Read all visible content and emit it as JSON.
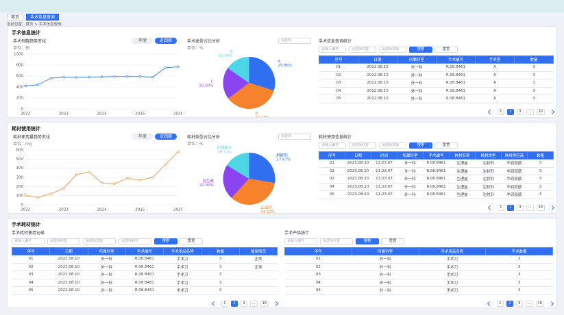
{
  "tabs": [
    "首页",
    "手术信息查询"
  ],
  "active_tab": 1,
  "breadcrumb": "当前位置：首页 > 手术信息查询",
  "panels": [
    {
      "title": "手术信息统计",
      "line": {
        "type": "line",
        "title": "手术例数趋势变化",
        "unit": "单位：例",
        "toggles": [
          "年度",
          "近四周"
        ],
        "active_toggle": 1,
        "color": "#3a86e0",
        "categories": [
          "2022",
          null,
          null,
          "2023",
          null,
          null,
          "2024",
          null,
          null,
          "2025",
          null,
          null,
          "2026"
        ],
        "values": [
          420,
          440,
          560,
          580,
          575,
          580,
          585,
          590,
          590,
          590,
          580,
          750,
          770
        ],
        "ylim": [
          0,
          1000
        ],
        "yticks": [
          0,
          200,
          400,
          600,
          800,
          1000
        ]
      },
      "pie": {
        "type": "pie",
        "title": "手术类型占比分析",
        "unit": "单位：%",
        "dropdown": "请选择",
        "names": [
          "A",
          "B",
          "C",
          "D"
        ],
        "values": [
          29.86,
          34.78,
          20.0,
          15.36
        ],
        "value_labels": [
          "29.86%",
          "34.78%",
          "20.00%",
          "15.36%"
        ],
        "colors": [
          "#2f6ff0",
          "#f6832b",
          "#8a45f0",
          "#4fd6e6"
        ]
      },
      "table": {
        "title": "手术信息查询统计",
        "filters": [
          "请输入编号",
          "请选择科室",
          "请选择日期"
        ],
        "buttons": [
          "搜索",
          "重置"
        ],
        "columns": [
          "序号",
          "日期",
          "所属科室",
          "手术编号",
          "手术室",
          "数量"
        ],
        "rows": [
          [
            "01",
            "2022.08.10",
            "外一科",
            "R.08.8461",
            "A",
            "3"
          ],
          [
            "02",
            "2022.08.10",
            "外一科",
            "R.08.8461",
            "A",
            "3"
          ],
          [
            "03",
            "2022.08.10",
            "外一科",
            "R.08.8461",
            "A",
            "3"
          ],
          [
            "04",
            "2022.08.10",
            "外一科",
            "R.08.8461",
            "A",
            "3"
          ],
          [
            "05",
            "2022.08.10",
            "外一科",
            "R.08.8461",
            "A",
            "3"
          ]
        ],
        "pages": [
          "1",
          "2",
          "3",
          "...",
          "10"
        ],
        "active_page": 1
      }
    },
    {
      "title": "耗材使用统计",
      "line": {
        "type": "line",
        "title": "耗材使用量趋势变化",
        "unit": "单位：mg",
        "toggles": [
          "年度",
          "近四周"
        ],
        "active_toggle": 1,
        "color": "#f39a4a",
        "categories": [
          "2022",
          null,
          null,
          "2023",
          null,
          null,
          "2024",
          null,
          null,
          "2025",
          null,
          null,
          "2026"
        ],
        "values": [
          100,
          80,
          120,
          180,
          330,
          360,
          240,
          230,
          290,
          270,
          300,
          440,
          580
        ],
        "ylim": [
          0,
          600
        ],
        "yticks": [
          0,
          100,
          200,
          300,
          400,
          500,
          600
        ]
      },
      "pie": {
        "type": "pie",
        "title": "耗材类型占比分析",
        "unit": "单位：%",
        "dropdown": "请选择",
        "names": [
          "麻醉剂",
          "止血剂",
          "抗生素",
          "生理盐水"
        ],
        "values": [
          27.67,
          34.12,
          22.0,
          16.21
        ],
        "value_labels": [
          "27.67%",
          "34.12%",
          "22.00%",
          "16.21%"
        ],
        "colors": [
          "#2f6ff0",
          "#f6832b",
          "#8a45f0",
          "#4fd6e6"
        ]
      },
      "table": {
        "title": "耗材使用信息统计",
        "filters": [
          "请输入编号",
          "请选择科室",
          "请选择日期"
        ],
        "buttons": [
          "搜索",
          "重置"
        ],
        "columns": [
          "序号",
          "日期",
          "时间",
          "所属科室",
          "手术编号",
          "耗材名称",
          "耗材类型",
          "耗材供应商",
          "数量"
        ],
        "rows": [
          [
            "01",
            "2023.08.10",
            "11:23:07",
            "外一科",
            "R.08.8461",
            "生理盐",
            "注射剂",
            "华润双鹤",
            "3"
          ],
          [
            "02",
            "2023.08.10",
            "11:23:07",
            "外一科",
            "R.08.8461",
            "生理盐",
            "注射剂",
            "华润双鹤",
            "3"
          ],
          [
            "03",
            "2023.08.10",
            "11:23:07",
            "外一科",
            "R.08.8461",
            "生理盐",
            "注射剂",
            "华润双鹤",
            "3"
          ],
          [
            "04",
            "2023.08.10",
            "11:23:07",
            "外一科",
            "R.08.8461",
            "生理盐",
            "注射剂",
            "华润双鹤",
            "3"
          ],
          [
            "05",
            "2023.08.10",
            "11:23:07",
            "外一科",
            "R.08.8461",
            "生理盐",
            "注射剂",
            "华润双鹤",
            "3"
          ]
        ],
        "pages": [
          "1",
          "2",
          "3",
          "...",
          "10"
        ],
        "active_page": 1
      }
    },
    {
      "title": "手术耗材统计",
      "tables": [
        {
          "title": "手术耗材使用记录",
          "filters": [
            "请输入编号",
            "请选择科室",
            "请选择日期",
            "请选择耗材"
          ],
          "buttons": [
            "搜索",
            "重置"
          ],
          "columns": [
            "序号",
            "日期",
            "所属科室",
            "手术编号",
            "手术用品名称",
            "数量",
            "使用情况"
          ],
          "rows": [
            [
              "01",
              "2022.08.10",
              "外一科",
              "R.08.8461",
              "手术刀",
              "3",
              "正常"
            ],
            [
              "02",
              "2022.08.10",
              "外一科",
              "R.08.8461",
              "手术刀",
              "3",
              "正常"
            ],
            [
              "03",
              "2022.08.10",
              "外一科",
              "R.08.8461",
              "手术刀",
              "3",
              ""
            ],
            [
              "04",
              "2022.08.10",
              "外一科",
              "R.08.8461",
              "手术刀",
              "3",
              ""
            ],
            [
              "05",
              "2022.08.10",
              "外一科",
              "R.08.8461",
              "手术刀",
              "3",
              ""
            ]
          ],
          "pages": [
            "1",
            "2",
            "3",
            "...",
            "10"
          ],
          "active_page": 1
        },
        {
          "title": "手术产品统计",
          "filters": [
            "请输入编号",
            "请选择科室"
          ],
          "buttons": [
            "搜索",
            "重置"
          ],
          "columns": [
            "序号",
            "所属科室",
            "手术用品名称",
            "手术数量"
          ],
          "rows": [
            [
              "01",
              "外一科",
              "手术刀",
              "3"
            ],
            [
              "02",
              "外一科",
              "手术刀",
              "3"
            ],
            [
              "03",
              "外一科",
              "手术刀",
              "3"
            ],
            [
              "04",
              "外一科",
              "手术刀",
              "3"
            ],
            [
              "05",
              "外一科",
              "手术刀",
              "3"
            ]
          ],
          "pages": [
            "1",
            "2",
            "3",
            "...",
            "10"
          ],
          "active_page": 1
        }
      ]
    }
  ]
}
